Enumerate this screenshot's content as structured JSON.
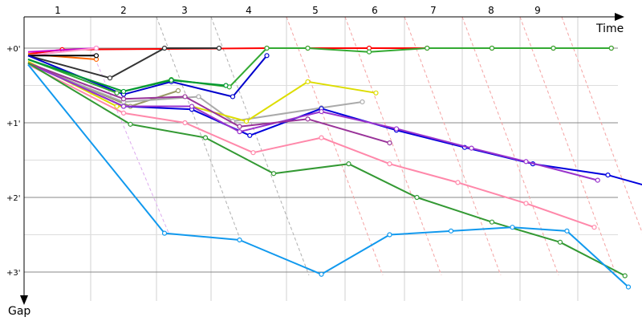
{
  "chart_data": {
    "type": "line",
    "title": "",
    "xlabel": "Time",
    "ylabel": "Gap",
    "x_ticks": [
      "1",
      "2",
      "3",
      "4",
      "5",
      "6",
      "7",
      "8",
      "9"
    ],
    "y_ticks": [
      "+0'",
      "+1'",
      "+2'",
      "+3'"
    ],
    "ylim": [
      0,
      3.5
    ],
    "grid": true,
    "series": [
      {
        "color": "#ff0000",
        "points": [
          [
            0.0,
            0.08
          ],
          [
            0.5,
            0.02
          ],
          [
            3.5,
            0.0
          ],
          [
            4.1,
            0.0
          ],
          [
            5.0,
            0.0
          ],
          [
            5.85,
            0.0
          ],
          [
            6.8,
            0.0
          ],
          [
            7.7,
            0.0
          ],
          [
            8.55,
            0.0
          ]
        ]
      },
      {
        "color": "#ff6600",
        "points": [
          [
            0.0,
            0.08
          ],
          [
            1.0,
            0.15
          ]
        ]
      },
      {
        "color": "#cc00cc",
        "points": [
          [
            0.0,
            0.05
          ],
          [
            1.0,
            0.0
          ]
        ]
      },
      {
        "color": "#ff99cc",
        "points": [
          [
            0.0,
            0.1
          ],
          [
            1.0,
            0.0
          ]
        ]
      },
      {
        "color": "#333333",
        "points": [
          [
            0.0,
            0.1
          ],
          [
            1.2,
            0.4
          ],
          [
            2.0,
            0.0
          ],
          [
            2.8,
            0.0
          ]
        ]
      },
      {
        "color": "#000000",
        "points": [
          [
            0.0,
            0.1
          ],
          [
            1.0,
            0.1
          ]
        ]
      },
      {
        "color": "#0000cc",
        "points": [
          [
            0.0,
            0.1
          ],
          [
            1.4,
            0.62
          ],
          [
            2.1,
            0.45
          ],
          [
            3.0,
            0.65
          ],
          [
            3.5,
            0.1
          ]
        ]
      },
      {
        "color": "#33aa33",
        "points": [
          [
            0.0,
            0.15
          ],
          [
            1.3,
            0.6
          ],
          [
            2.1,
            0.42
          ],
          [
            2.95,
            0.52
          ],
          [
            3.5,
            0.0
          ],
          [
            4.1,
            0.0
          ],
          [
            5.0,
            0.05
          ],
          [
            5.85,
            0.0
          ],
          [
            6.8,
            0.0
          ],
          [
            7.7,
            0.0
          ],
          [
            8.55,
            0.0
          ]
        ]
      },
      {
        "color": "#009933",
        "points": [
          [
            0.0,
            0.15
          ],
          [
            1.4,
            0.58
          ],
          [
            2.1,
            0.43
          ],
          [
            2.9,
            0.5
          ]
        ]
      },
      {
        "color": "#999966",
        "points": [
          [
            0.0,
            0.2
          ],
          [
            1.5,
            0.78
          ],
          [
            2.2,
            0.57
          ]
        ]
      },
      {
        "color": "#aaaaaa",
        "points": [
          [
            0.0,
            0.22
          ],
          [
            1.4,
            0.72
          ],
          [
            2.5,
            0.65
          ],
          [
            3.0,
            0.98
          ],
          [
            4.3,
            0.8
          ],
          [
            4.9,
            0.72
          ]
        ]
      },
      {
        "color": "#dddd00",
        "points": [
          [
            0.0,
            0.18
          ],
          [
            1.3,
            0.78
          ],
          [
            2.4,
            0.78
          ],
          [
            3.2,
            0.98
          ],
          [
            4.1,
            0.45
          ],
          [
            5.1,
            0.6
          ]
        ]
      },
      {
        "color": "#0000dd",
        "points": [
          [
            0.0,
            0.2
          ],
          [
            1.4,
            0.78
          ],
          [
            2.4,
            0.82
          ],
          [
            3.25,
            1.17
          ],
          [
            4.3,
            0.81
          ],
          [
            5.4,
            1.1
          ],
          [
            6.4,
            1.33
          ],
          [
            7.4,
            1.55
          ],
          [
            8.5,
            1.7
          ],
          [
            9.4,
            1.93
          ]
        ]
      },
      {
        "color": "#9933cc",
        "points": [
          [
            0.0,
            0.2
          ],
          [
            1.4,
            0.78
          ],
          [
            2.4,
            0.78
          ],
          [
            3.1,
            1.12
          ],
          [
            4.3,
            0.85
          ],
          [
            5.4,
            1.08
          ],
          [
            6.5,
            1.34
          ],
          [
            7.3,
            1.52
          ],
          [
            8.35,
            1.77
          ]
        ]
      },
      {
        "color": "#993399",
        "points": [
          [
            0.0,
            0.2
          ],
          [
            1.4,
            0.68
          ],
          [
            2.3,
            0.65
          ],
          [
            3.1,
            1.05
          ],
          [
            4.1,
            0.95
          ],
          [
            5.3,
            1.27
          ]
        ]
      },
      {
        "color": "#ff88aa",
        "points": [
          [
            0.0,
            0.22
          ],
          [
            1.4,
            0.87
          ],
          [
            2.3,
            1.0
          ],
          [
            3.3,
            1.4
          ],
          [
            4.3,
            1.2
          ],
          [
            5.3,
            1.55
          ],
          [
            6.3,
            1.8
          ],
          [
            7.3,
            2.08
          ],
          [
            8.3,
            2.4
          ]
        ]
      },
      {
        "color": "#339933",
        "points": [
          [
            0.0,
            0.2
          ],
          [
            1.5,
            1.02
          ],
          [
            2.6,
            1.2
          ],
          [
            3.6,
            1.68
          ],
          [
            4.7,
            1.55
          ],
          [
            5.7,
            2.0
          ],
          [
            6.8,
            2.33
          ],
          [
            7.8,
            2.6
          ],
          [
            8.75,
            3.05
          ]
        ]
      },
      {
        "color": "#1199ee",
        "points": [
          [
            0.0,
            0.22
          ],
          [
            2.0,
            2.48
          ],
          [
            3.1,
            2.57
          ],
          [
            4.3,
            3.03
          ],
          [
            5.3,
            2.5
          ],
          [
            6.2,
            2.45
          ],
          [
            7.1,
            2.4
          ],
          [
            7.9,
            2.45
          ],
          [
            8.8,
            3.2
          ]
        ]
      }
    ]
  }
}
